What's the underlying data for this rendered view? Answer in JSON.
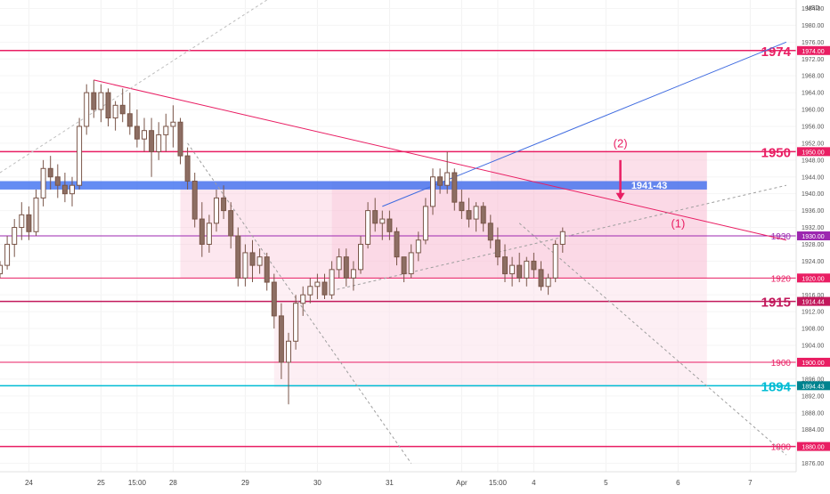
{
  "chart_data": {
    "type": "candlestick",
    "currency_label": "USD",
    "ylim": [
      1874,
      1986
    ],
    "y_ticks": [
      1876,
      1880,
      1884,
      1888,
      1892,
      1896,
      1900,
      1904,
      1908,
      1912,
      1916,
      1920,
      1924,
      1928,
      1932,
      1936,
      1940,
      1944,
      1948,
      1952,
      1956,
      1960,
      1964,
      1968,
      1972,
      1976,
      1980,
      1984
    ],
    "x_ticks": [
      {
        "label": "24",
        "i": 4
      },
      {
        "label": "25",
        "i": 14
      },
      {
        "label": "15:00",
        "i": 19
      },
      {
        "label": "28",
        "i": 24
      },
      {
        "label": "29",
        "i": 34
      },
      {
        "label": "30",
        "i": 44
      },
      {
        "label": "31",
        "i": 54
      },
      {
        "label": "Apr",
        "i": 64
      },
      {
        "label": "15:00",
        "i": 69
      },
      {
        "label": "4",
        "i": 74
      },
      {
        "label": "5",
        "i": 84
      },
      {
        "label": "6",
        "i": 94
      },
      {
        "label": "7",
        "i": 104
      }
    ],
    "x_index_range": [
      0,
      109
    ],
    "candles": [
      [
        1921,
        1924,
        1920,
        1923
      ],
      [
        1923,
        1930,
        1922,
        1928
      ],
      [
        1928,
        1934,
        1925,
        1932
      ],
      [
        1932,
        1938,
        1929,
        1935
      ],
      [
        1935,
        1937,
        1929,
        1931
      ],
      [
        1931,
        1941,
        1930,
        1939
      ],
      [
        1939,
        1948,
        1937,
        1946
      ],
      [
        1946,
        1949,
        1941,
        1944
      ],
      [
        1944,
        1947,
        1939,
        1942
      ],
      [
        1942,
        1945,
        1938,
        1940
      ],
      [
        1940,
        1944,
        1937,
        1942
      ],
      [
        1942,
        1958,
        1941,
        1956
      ],
      [
        1956,
        1966,
        1954,
        1964
      ],
      [
        1964,
        1967,
        1958,
        1960
      ],
      [
        1960,
        1966,
        1957,
        1964
      ],
      [
        1964,
        1965,
        1956,
        1958
      ],
      [
        1958,
        1962,
        1955,
        1961
      ],
      [
        1961,
        1965,
        1957,
        1959
      ],
      [
        1959,
        1964,
        1954,
        1956
      ],
      [
        1956,
        1960,
        1951,
        1953
      ],
      [
        1953,
        1958,
        1950,
        1955
      ],
      [
        1955,
        1958,
        1944,
        1950
      ],
      [
        1950,
        1957,
        1948,
        1954
      ],
      [
        1954,
        1959,
        1950,
        1956
      ],
      [
        1956,
        1961,
        1951,
        1957
      ],
      [
        1957,
        1958,
        1947,
        1949
      ],
      [
        1949,
        1951,
        1941,
        1943
      ],
      [
        1943,
        1945,
        1932,
        1934
      ],
      [
        1934,
        1938,
        1925,
        1928
      ],
      [
        1928,
        1935,
        1926,
        1933
      ],
      [
        1933,
        1941,
        1931,
        1939
      ],
      [
        1939,
        1942,
        1934,
        1936
      ],
      [
        1936,
        1938,
        1927,
        1930
      ],
      [
        1930,
        1932,
        1918,
        1920
      ],
      [
        1920,
        1928,
        1918,
        1926
      ],
      [
        1926,
        1929,
        1919,
        1923
      ],
      [
        1923,
        1927,
        1921,
        1925
      ],
      [
        1925,
        1926,
        1917,
        1919
      ],
      [
        1919,
        1921,
        1908,
        1911
      ],
      [
        1911,
        1914,
        1896,
        1900
      ],
      [
        1900,
        1907,
        1890,
        1905
      ],
      [
        1905,
        1916,
        1903,
        1914
      ],
      [
        1914,
        1918,
        1911,
        1916
      ],
      [
        1916,
        1920,
        1914,
        1918
      ],
      [
        1918,
        1921,
        1915,
        1919
      ],
      [
        1919,
        1921,
        1915,
        1916
      ],
      [
        1916,
        1924,
        1915,
        1922
      ],
      [
        1922,
        1927,
        1920,
        1925
      ],
      [
        1925,
        1927,
        1918,
        1920
      ],
      [
        1920,
        1924,
        1917,
        1922
      ],
      [
        1922,
        1930,
        1921,
        1928
      ],
      [
        1928,
        1938,
        1927,
        1936
      ],
      [
        1936,
        1939,
        1931,
        1933
      ],
      [
        1933,
        1936,
        1929,
        1934
      ],
      [
        1934,
        1936,
        1929,
        1931
      ],
      [
        1931,
        1932,
        1923,
        1925
      ],
      [
        1925,
        1925,
        1919,
        1921
      ],
      [
        1921,
        1928,
        1920,
        1926
      ],
      [
        1926,
        1931,
        1924,
        1929
      ],
      [
        1929,
        1939,
        1928,
        1937
      ],
      [
        1937,
        1946,
        1935,
        1944
      ],
      [
        1944,
        1946,
        1940,
        1942
      ],
      [
        1942,
        1950,
        1940,
        1945
      ],
      [
        1945,
        1946,
        1936,
        1938
      ],
      [
        1938,
        1941,
        1934,
        1936
      ],
      [
        1936,
        1939,
        1932,
        1934
      ],
      [
        1934,
        1938,
        1931,
        1937
      ],
      [
        1937,
        1938,
        1931,
        1933
      ],
      [
        1933,
        1935,
        1927,
        1929
      ],
      [
        1929,
        1932,
        1923,
        1925
      ],
      [
        1925,
        1928,
        1919,
        1921
      ],
      [
        1921,
        1925,
        1918,
        1923
      ],
      [
        1923,
        1926,
        1919,
        1920
      ],
      [
        1920,
        1925,
        1918,
        1924
      ],
      [
        1924,
        1926,
        1920,
        1922
      ],
      [
        1922,
        1924,
        1917,
        1918
      ],
      [
        1918,
        1921,
        1916,
        1920
      ],
      [
        1920,
        1929,
        1919,
        1928
      ],
      [
        1928,
        1932,
        1926,
        1931
      ]
    ],
    "horizontal_levels": [
      {
        "value": 1974,
        "label": "1974",
        "tag": "1974.00",
        "color": "#e91e63",
        "width": 1.5,
        "big": true
      },
      {
        "value": 1950,
        "label": "1950",
        "tag": "1950.00",
        "color": "#e91e63",
        "width": 1.5,
        "big": true
      },
      {
        "value": 1930,
        "label": "1930",
        "tag": "1930.00",
        "color": "#9c27b0",
        "width": 1,
        "big": false
      },
      {
        "value": 1920,
        "label": "1920",
        "tag": "1920.00",
        "color": "#e91e63",
        "width": 1,
        "big": false
      },
      {
        "value": 1914.44,
        "label": "1915",
        "tag": "1914.44",
        "color": "#c2185b",
        "width": 1.5,
        "big": true
      },
      {
        "value": 1900,
        "label": "1900",
        "tag": "1900.00",
        "color": "#e91e63",
        "width": 1,
        "big": false
      },
      {
        "value": 1894.43,
        "label": "1894",
        "tag": "1894.43",
        "color": "#00bcd4",
        "width": 1.5,
        "big": true,
        "tag_color": "#00838f"
      },
      {
        "value": 1880,
        "label": "1880",
        "tag": "1880.00",
        "color": "#e91e63",
        "width": 1.5,
        "big": false
      }
    ],
    "zone": {
      "from": 1941,
      "to": 1943,
      "label": "1941-43",
      "color": "#3d6ff0"
    },
    "trendlines": [
      {
        "from": [
          13,
          1967
        ],
        "to": [
          109,
          1929
        ],
        "color": "#e91e63",
        "dash": false
      },
      {
        "from": [
          53,
          1937
        ],
        "to": [
          109,
          1976
        ],
        "color": "#3f6be0",
        "dash": false
      },
      {
        "from": [
          46,
          1917
        ],
        "to": [
          109,
          1942
        ],
        "color": "#9e9e9e",
        "dash": true
      },
      {
        "from": [
          26,
          1952
        ],
        "to": [
          57,
          1876
        ],
        "color": "#9e9e9e",
        "dash": true
      },
      {
        "from": [
          72,
          1933
        ],
        "to": [
          109,
          1878
        ],
        "color": "#9e9e9e",
        "dash": true
      },
      {
        "from": [
          0,
          1945
        ],
        "to": [
          37,
          1986
        ],
        "color": "#bdbdbd",
        "dash": true
      }
    ],
    "annotations": [
      {
        "text": "(2)",
        "i": 86,
        "y": 1951,
        "color": "#e91e63"
      },
      {
        "text": "(1)",
        "i": 94,
        "y": 1932,
        "color": "#e91e63"
      }
    ],
    "arrow": {
      "i": 86,
      "from": 1948,
      "to": 1938.5,
      "color": "#e91e63"
    },
    "shaded_boxes": [
      {
        "x1": 25,
        "x2": 98,
        "y1": 1920,
        "y2": 1943,
        "color": "#f8bbd0",
        "opacity": 0.35
      },
      {
        "x1": 38,
        "x2": 98,
        "y1": 1894,
        "y2": 1920,
        "color": "#fce4ec",
        "opacity": 0.6
      },
      {
        "x1": 46,
        "x2": 98,
        "y1": 1920,
        "y2": 1943,
        "color": "#f8bbd0",
        "opacity": 0.3
      },
      {
        "x1": 68,
        "x2": 98,
        "y1": 1943,
        "y2": 1950,
        "color": "#f8bbd0",
        "opacity": 0.45
      }
    ]
  }
}
